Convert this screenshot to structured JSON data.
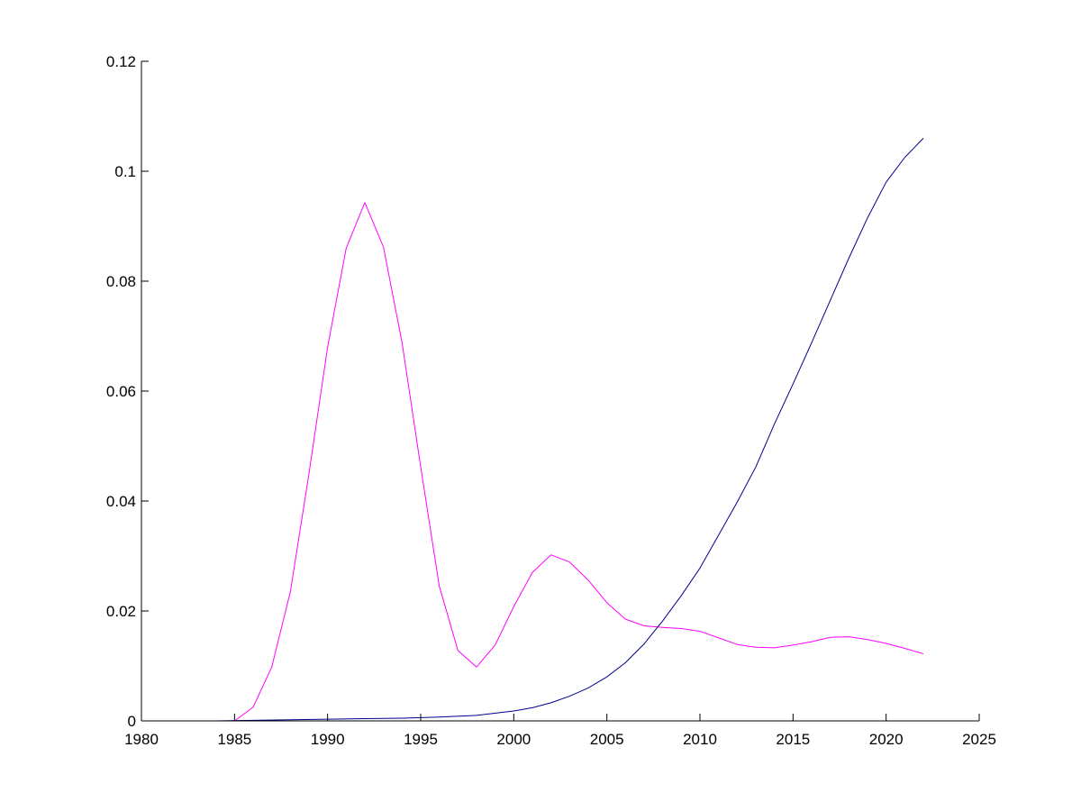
{
  "chart_data": {
    "type": "line",
    "title": "",
    "xlabel": "",
    "ylabel": "",
    "xlim": [
      1980,
      2025
    ],
    "ylim": [
      0,
      0.12
    ],
    "grid": false,
    "legend": "none",
    "x_ticks": [
      1980,
      1985,
      1990,
      1995,
      2000,
      2005,
      2010,
      2015,
      2020,
      2025
    ],
    "x_tick_labels": [
      "1980",
      "1985",
      "1990",
      "1995",
      "2000",
      "2005",
      "2010",
      "2015",
      "2020",
      "2025"
    ],
    "y_ticks": [
      0,
      0.02,
      0.04,
      0.06,
      0.08,
      0.1,
      0.12
    ],
    "y_tick_labels": [
      "0",
      "0.02",
      "0.04",
      "0.06",
      "0.08",
      "0.1",
      "0.12"
    ],
    "series": [
      {
        "color": "#ff00ff",
        "x": [
          1980,
          1981,
          1982,
          1983,
          1984,
          1985,
          1986,
          1987,
          1988,
          1989,
          1990,
          1991,
          1992,
          1993,
          1994,
          1995,
          1996,
          1997,
          1998,
          1999,
          2000,
          2001,
          2002,
          2003,
          2004,
          2005,
          2006,
          2007,
          2008,
          2009,
          2010,
          2011,
          2012,
          2013,
          2014,
          2015,
          2016,
          2017,
          2018,
          2019,
          2020,
          2021,
          2022
        ],
        "y": [
          0,
          0,
          0,
          0,
          0,
          0,
          0.0025,
          0.0098,
          0.0235,
          0.045,
          0.068,
          0.086,
          0.0943,
          0.0862,
          0.0688,
          0.0462,
          0.0245,
          0.0128,
          0.0098,
          0.0138,
          0.0208,
          0.027,
          0.0302,
          0.0289,
          0.0256,
          0.0215,
          0.0185,
          0.0173,
          0.017,
          0.0168,
          0.0163,
          0.0151,
          0.0139,
          0.0134,
          0.0133,
          0.0138,
          0.0144,
          0.0152,
          0.0153,
          0.0148,
          0.0141,
          0.0132,
          0.0122
        ]
      },
      {
        "color": "#00008b",
        "x": [
          1980,
          1982,
          1984,
          1986,
          1988,
          1990,
          1992,
          1994,
          1996,
          1998,
          2000,
          2001,
          2002,
          2003,
          2004,
          2005,
          2006,
          2007,
          2008,
          2009,
          2010,
          2011,
          2012,
          2013,
          2014,
          2015,
          2016,
          2017,
          2018,
          2019,
          2020,
          2021,
          2022
        ],
        "y": [
          0,
          0,
          0,
          0.0001,
          0.0002,
          0.0003,
          0.0004,
          0.0005,
          0.0007,
          0.001,
          0.0018,
          0.0024,
          0.0033,
          0.0045,
          0.006,
          0.008,
          0.0106,
          0.014,
          0.0182,
          0.0228,
          0.0278,
          0.0338,
          0.0398,
          0.0462,
          0.054,
          0.0613,
          0.0688,
          0.0765,
          0.0842,
          0.0915,
          0.098,
          0.1025,
          0.106
        ]
      }
    ]
  }
}
